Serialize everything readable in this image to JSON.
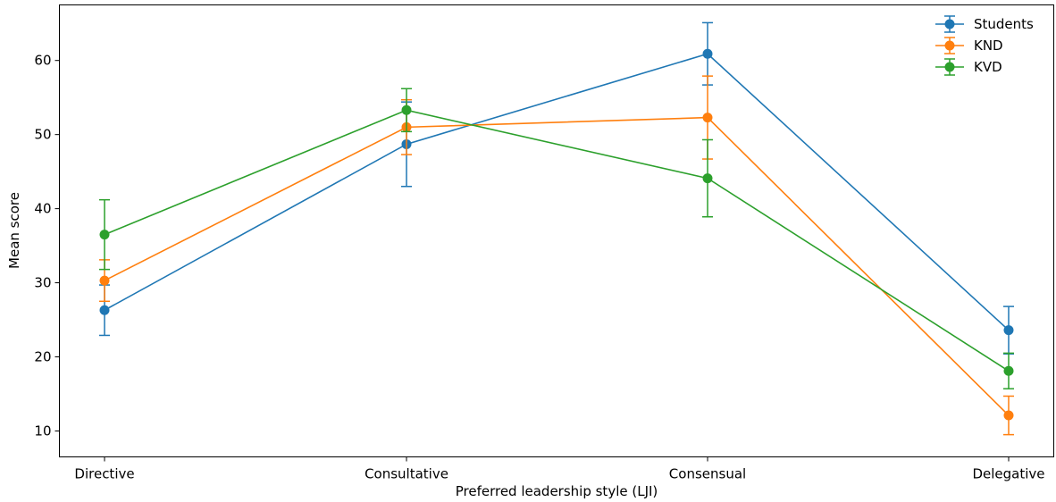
{
  "chart_data": {
    "type": "line",
    "error_bars": true,
    "categories": [
      "Directive",
      "Consultative",
      "Consensual",
      "Delegative"
    ],
    "xlabel": "Preferred leadership style (LJI)",
    "ylabel": "Mean score",
    "ylim": [
      6.5,
      67.5
    ],
    "yticks": [
      10,
      20,
      30,
      40,
      50,
      60
    ],
    "grid": false,
    "legend_position": "top-right",
    "series": [
      {
        "name": "Students",
        "color": "#1f77b4",
        "values": [
          26.3,
          48.7,
          60.9,
          23.6
        ],
        "errors": [
          3.4,
          5.7,
          4.2,
          3.2
        ]
      },
      {
        "name": "KND",
        "color": "#ff7f0e",
        "values": [
          30.3,
          51.0,
          52.3,
          12.1
        ],
        "errors": [
          2.8,
          3.7,
          5.6,
          2.6
        ]
      },
      {
        "name": "KVD",
        "color": "#2ca02c",
        "values": [
          36.5,
          53.3,
          44.1,
          18.1
        ],
        "errors": [
          4.7,
          2.9,
          5.2,
          2.4
        ]
      }
    ]
  }
}
